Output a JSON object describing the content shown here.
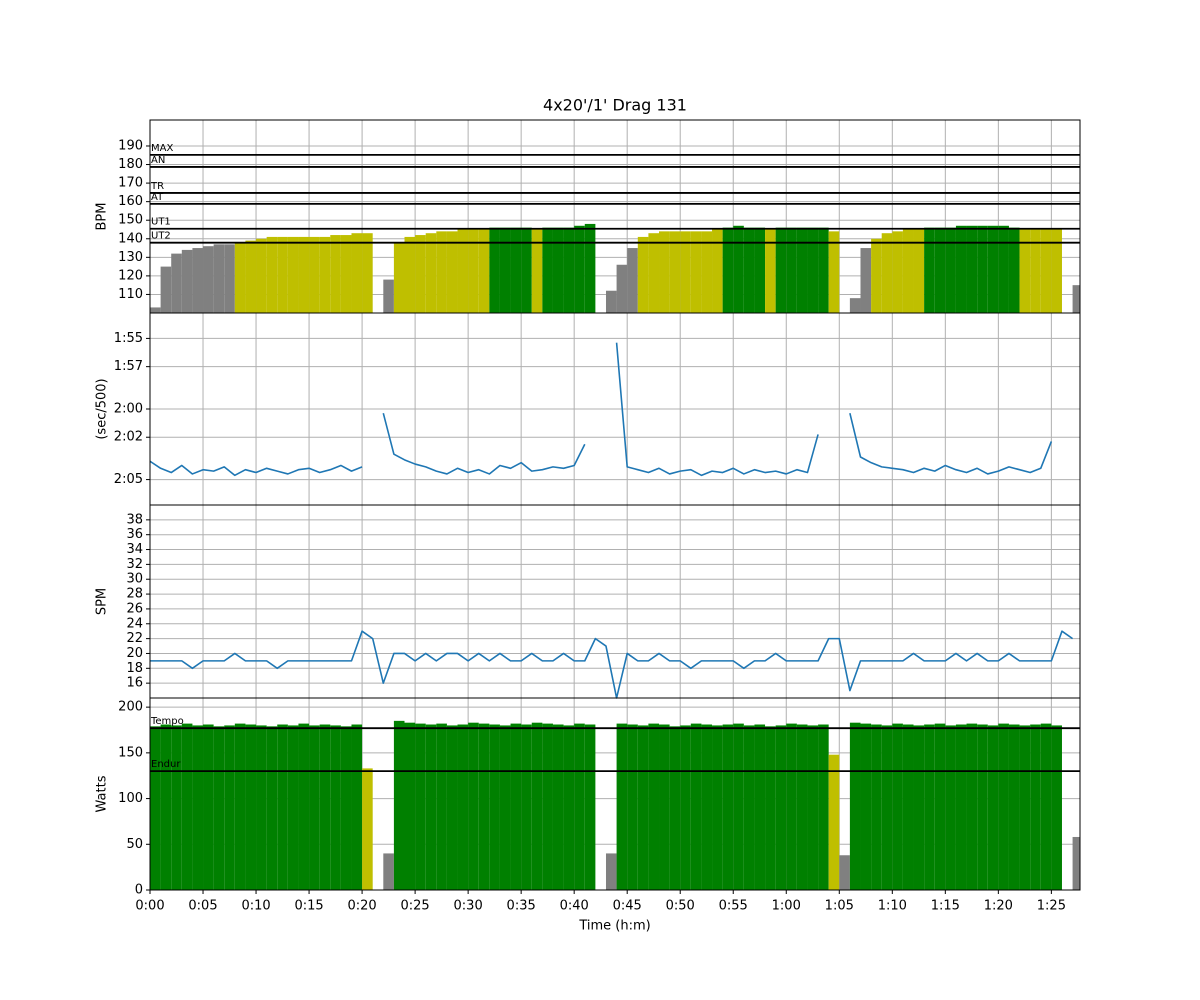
{
  "chart_data": [
    {
      "type": "bar",
      "title": "4x20'/1' Drag 131",
      "ylabel": "BPM",
      "x": [
        0,
        1,
        2,
        3,
        4,
        5,
        6,
        7,
        8,
        9,
        10,
        11,
        12,
        13,
        14,
        15,
        16,
        17,
        18,
        19,
        20,
        21,
        22,
        23,
        24,
        25,
        26,
        27,
        28,
        29,
        30,
        31,
        32,
        33,
        34,
        35,
        36,
        37,
        38,
        39,
        40,
        41,
        42,
        43,
        44,
        45,
        46,
        47,
        48,
        49,
        50,
        51,
        52,
        53,
        54,
        55,
        56,
        57,
        58,
        59,
        60,
        61,
        62,
        63,
        64,
        65,
        66,
        67,
        68,
        69,
        70,
        71,
        72,
        73,
        74,
        75,
        76,
        77,
        78,
        79,
        80,
        81,
        82,
        83,
        84,
        85,
        86,
        87
      ],
      "values": [
        103,
        125,
        132,
        134,
        135,
        136,
        137,
        137,
        138,
        139,
        140,
        141,
        141,
        141,
        141,
        141,
        141,
        142,
        142,
        143,
        143,
        null,
        118,
        138,
        141,
        142,
        143,
        144,
        144,
        145,
        145,
        145,
        146,
        146,
        146,
        146,
        145,
        146,
        146,
        146,
        147,
        148,
        null,
        112,
        126,
        135,
        141,
        143,
        144,
        144,
        144,
        144,
        144,
        145,
        146,
        147,
        146,
        146,
        145,
        146,
        146,
        146,
        146,
        146,
        144,
        null,
        108,
        135,
        140,
        143,
        144,
        145,
        145,
        146,
        146,
        146,
        147,
        147,
        147,
        147,
        147,
        146,
        145,
        145,
        145,
        145,
        null,
        115
      ],
      "bar_colors": [
        "#808080",
        "#bfbf00",
        "#008000"
      ],
      "zones": [
        {
          "label": "MAX",
          "value": 185.2
        },
        {
          "label": "AN",
          "value": 178.7
        },
        {
          "label": "TR",
          "value": 164.7
        },
        {
          "label": "AT",
          "value": 158.8
        },
        {
          "label": "UT1",
          "value": 145.4
        },
        {
          "label": "UT2",
          "value": 137.9
        }
      ],
      "xlim": [
        0,
        87.7
      ],
      "ylim": [
        100,
        204
      ],
      "yticks": [
        110,
        120,
        130,
        140,
        150,
        160,
        170,
        180,
        190
      ],
      "grid": true
    },
    {
      "type": "line",
      "ylabel": "(sec/500)",
      "color": "#1f77b4",
      "x": [
        0,
        1,
        2,
        3,
        4,
        5,
        6,
        7,
        8,
        9,
        10,
        11,
        12,
        13,
        14,
        15,
        16,
        17,
        18,
        19,
        20,
        21,
        22,
        23,
        24,
        25,
        26,
        27,
        28,
        29,
        30,
        31,
        32,
        33,
        34,
        35,
        36,
        37,
        38,
        39,
        40,
        41,
        42,
        43,
        44,
        45,
        46,
        47,
        48,
        49,
        50,
        51,
        52,
        53,
        54,
        55,
        56,
        57,
        58,
        59,
        60,
        61,
        62,
        63,
        64,
        65,
        66,
        67,
        68,
        69,
        70,
        71,
        72,
        73,
        74,
        75,
        76,
        77,
        78,
        79,
        80,
        81,
        82,
        83,
        84,
        85,
        86,
        87
      ],
      "values": [
        123.7,
        124.2,
        124.5,
        124.0,
        124.6,
        124.3,
        124.4,
        124.1,
        124.7,
        124.3,
        124.5,
        124.2,
        124.4,
        124.6,
        124.3,
        124.2,
        124.5,
        124.3,
        124.0,
        124.4,
        124.1,
        null,
        120.3,
        123.2,
        123.6,
        123.9,
        124.1,
        124.4,
        124.6,
        124.2,
        124.5,
        124.3,
        124.6,
        124.0,
        124.2,
        123.8,
        124.4,
        124.3,
        124.1,
        124.2,
        124.0,
        122.5,
        null,
        null,
        115.3,
        124.1,
        124.3,
        124.5,
        124.2,
        124.6,
        124.4,
        124.3,
        124.7,
        124.4,
        124.5,
        124.2,
        124.6,
        124.3,
        124.5,
        124.4,
        124.6,
        124.3,
        124.5,
        121.8,
        null,
        null,
        120.3,
        123.4,
        123.8,
        124.1,
        124.2,
        124.3,
        124.5,
        124.2,
        124.4,
        124.0,
        124.3,
        124.5,
        124.2,
        124.6,
        124.4,
        124.1,
        124.3,
        124.5,
        124.2,
        122.3,
        null,
        null
      ],
      "xlim": [
        0,
        87.7
      ],
      "ylim": [
        126.8,
        113.2
      ],
      "yticks": [
        {
          "value": 115,
          "label": "1:55"
        },
        {
          "value": 117,
          "label": "1:57"
        },
        {
          "value": 120,
          "label": "2:00"
        },
        {
          "value": 122,
          "label": "2:02"
        },
        {
          "value": 125,
          "label": "2:05"
        }
      ],
      "grid": true
    },
    {
      "type": "line",
      "ylabel": "SPM",
      "color": "#1f77b4",
      "x": [
        0,
        1,
        2,
        3,
        4,
        5,
        6,
        7,
        8,
        9,
        10,
        11,
        12,
        13,
        14,
        15,
        16,
        17,
        18,
        19,
        20,
        21,
        22,
        23,
        24,
        25,
        26,
        27,
        28,
        29,
        30,
        31,
        32,
        33,
        34,
        35,
        36,
        37,
        38,
        39,
        40,
        41,
        42,
        43,
        44,
        45,
        46,
        47,
        48,
        49,
        50,
        51,
        52,
        53,
        54,
        55,
        56,
        57,
        58,
        59,
        60,
        61,
        62,
        63,
        64,
        65,
        66,
        67,
        68,
        69,
        70,
        71,
        72,
        73,
        74,
        75,
        76,
        77,
        78,
        79,
        80,
        81,
        82,
        83,
        84,
        85,
        86,
        87
      ],
      "values": [
        19,
        19,
        19,
        19,
        18,
        19,
        19,
        19,
        20,
        19,
        19,
        19,
        18,
        19,
        19,
        19,
        19,
        19,
        19,
        19,
        23,
        22,
        16,
        20,
        20,
        19,
        20,
        19,
        20,
        20,
        19,
        20,
        19,
        20,
        19,
        19,
        20,
        19,
        19,
        20,
        19,
        19,
        22,
        21,
        14,
        20,
        19,
        19,
        20,
        19,
        19,
        18,
        19,
        19,
        19,
        19,
        18,
        19,
        19,
        20,
        19,
        19,
        19,
        19,
        22,
        22,
        15,
        19,
        19,
        19,
        19,
        19,
        20,
        19,
        19,
        19,
        20,
        19,
        20,
        19,
        19,
        20,
        19,
        19,
        19,
        19,
        23,
        22
      ],
      "xlim": [
        0,
        87.7
      ],
      "ylim": [
        14,
        40
      ],
      "yticks": [
        16,
        18,
        20,
        22,
        24,
        26,
        28,
        30,
        32,
        34,
        36,
        38
      ],
      "grid": true
    },
    {
      "type": "bar",
      "ylabel": "Watts",
      "xlabel": "Time (h:m)",
      "x": [
        0,
        1,
        2,
        3,
        4,
        5,
        6,
        7,
        8,
        9,
        10,
        11,
        12,
        13,
        14,
        15,
        16,
        17,
        18,
        19,
        20,
        21,
        22,
        23,
        24,
        25,
        26,
        27,
        28,
        29,
        30,
        31,
        32,
        33,
        34,
        35,
        36,
        37,
        38,
        39,
        40,
        41,
        42,
        43,
        44,
        45,
        46,
        47,
        48,
        49,
        50,
        51,
        52,
        53,
        54,
        55,
        56,
        57,
        58,
        59,
        60,
        61,
        62,
        63,
        64,
        65,
        66,
        67,
        68,
        69,
        70,
        71,
        72,
        73,
        74,
        75,
        76,
        77,
        78,
        79,
        80,
        81,
        82,
        83,
        84,
        85,
        86,
        87
      ],
      "values": [
        179,
        181,
        180,
        182,
        180,
        181,
        179,
        180,
        182,
        181,
        180,
        179,
        181,
        180,
        182,
        180,
        181,
        180,
        179,
        181,
        133,
        null,
        40,
        185,
        183,
        182,
        181,
        182,
        180,
        181,
        183,
        182,
        181,
        180,
        182,
        181,
        183,
        182,
        181,
        180,
        182,
        181,
        null,
        40,
        182,
        181,
        180,
        182,
        181,
        179,
        180,
        182,
        181,
        180,
        181,
        182,
        180,
        181,
        179,
        180,
        182,
        181,
        180,
        181,
        148,
        38,
        183,
        182,
        181,
        180,
        182,
        181,
        180,
        181,
        182,
        180,
        181,
        182,
        181,
        180,
        182,
        181,
        180,
        181,
        182,
        180,
        null,
        58
      ],
      "bar_colors": [
        "#808080",
        "#bfbf00",
        "#008000"
      ],
      "zones": [
        {
          "label": "Tempo",
          "value": 177
        },
        {
          "label": "Endur",
          "value": 130
        }
      ],
      "xlim": [
        0,
        87.7
      ],
      "ylim": [
        0,
        210
      ],
      "yticks": [
        0,
        50,
        100,
        150,
        200
      ],
      "xticks": [
        {
          "value": 0,
          "label": "0:00"
        },
        {
          "value": 5,
          "label": "0:05"
        },
        {
          "value": 10,
          "label": "0:10"
        },
        {
          "value": 15,
          "label": "0:15"
        },
        {
          "value": 20,
          "label": "0:20"
        },
        {
          "value": 25,
          "label": "0:25"
        },
        {
          "value": 30,
          "label": "0:30"
        },
        {
          "value": 35,
          "label": "0:35"
        },
        {
          "value": 40,
          "label": "0:40"
        },
        {
          "value": 45,
          "label": "0:45"
        },
        {
          "value": 50,
          "label": "0:50"
        },
        {
          "value": 55,
          "label": "0:55"
        },
        {
          "value": 60,
          "label": "1:00"
        },
        {
          "value": 65,
          "label": "1:05"
        },
        {
          "value": 70,
          "label": "1:10"
        },
        {
          "value": 75,
          "label": "1:15"
        },
        {
          "value": 80,
          "label": "1:20"
        },
        {
          "value": 85,
          "label": "1:25"
        }
      ],
      "grid": true
    }
  ]
}
